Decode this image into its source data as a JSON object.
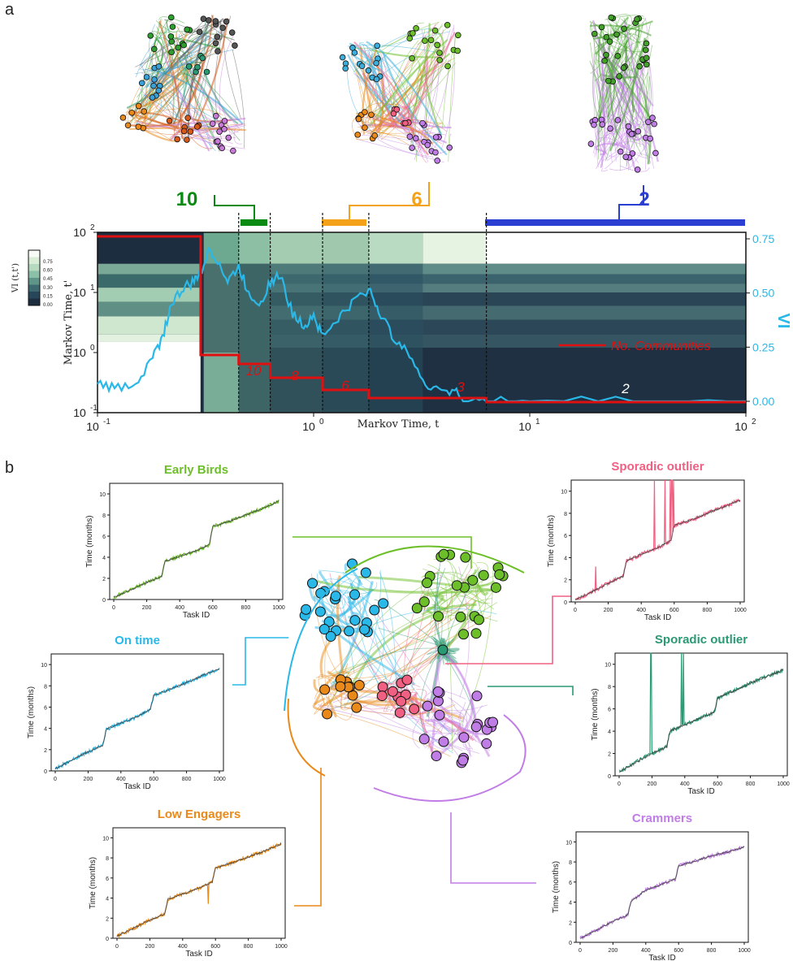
{
  "panel_a": {
    "label": "a",
    "networks": [
      {
        "count": "10",
        "color": "#0a8a12"
      },
      {
        "count": "6",
        "color": "#f5a21b"
      },
      {
        "count": "2",
        "color": "#2a3fd1"
      }
    ],
    "xlabel": "Markov Time, t",
    "ylabel": "Markov Time, t'",
    "right_label": "VI",
    "colorbar_label": "VI (t,t')",
    "colorbar_ticks": [
      "0.75",
      "0.60",
      "0.45",
      "0.30",
      "0.15",
      "0.00"
    ],
    "legend": "No. Communities",
    "x_ticks": [
      "10",
      "10",
      "10",
      "10"
    ],
    "x_exps": [
      "-1",
      "0",
      "1",
      "2"
    ],
    "y_ticks": [
      "10",
      "10",
      "10",
      "10"
    ],
    "y_exps": [
      "2",
      "1",
      "0",
      "-1"
    ],
    "right_ticks": [
      "0.75",
      "0.50",
      "0.25",
      "0.00"
    ],
    "community_labels": [
      "10",
      "8",
      "6",
      "3",
      "2"
    ]
  },
  "panel_b": {
    "label": "b",
    "plots": [
      {
        "title": "Early Birds",
        "color": "#6dbf2a",
        "ylabel": "Time (months)",
        "xlabel": "Task ID"
      },
      {
        "title": "On time",
        "color": "#29b8e8",
        "ylabel": "Time (months)",
        "xlabel": "Task ID"
      },
      {
        "title": "Low Engagers",
        "color": "#e8891a",
        "ylabel": "Time (months)",
        "xlabel": "Task ID"
      },
      {
        "title": "Sporadic outlier",
        "color": "#f06083",
        "ylabel": "Time (months)",
        "xlabel": "Task ID"
      },
      {
        "title": "Sporadic outlier",
        "color": "#2a9a72",
        "ylabel": "Time (months)",
        "xlabel": "Task ID"
      },
      {
        "title": "Crammers",
        "color": "#c17de6",
        "ylabel": "Time (months)",
        "xlabel": "Task ID"
      }
    ],
    "x_ticks": [
      "0",
      "200",
      "400",
      "600",
      "800",
      "1000"
    ],
    "y_ticks": [
      "0",
      "2",
      "4",
      "6",
      "8",
      "10"
    ]
  },
  "chart_data": [
    {
      "type": "line",
      "x_scale": "log",
      "xlim": [
        0.1,
        100
      ],
      "ylim": [
        0.1,
        100
      ],
      "xlabel": "Markov Time, t",
      "ylabel": "Markov Time, t'",
      "series": [
        {
          "name": "No. Communities",
          "color": "#e01010",
          "x": [
            0.1,
            0.3,
            0.3,
            0.45,
            0.45,
            0.63,
            0.63,
            1.1,
            1.1,
            1.8,
            1.8,
            6.3,
            6.3,
            100
          ],
          "values": [
            11,
            11,
            10,
            10,
            9,
            9,
            8,
            8,
            6,
            6,
            3,
            3,
            2,
            2
          ]
        },
        {
          "name": "VI",
          "color": "#29b8e8",
          "x": [
            0.1,
            0.12,
            0.15,
            0.18,
            0.2,
            0.22,
            0.25,
            0.28,
            0.3,
            0.33,
            0.36,
            0.4,
            0.45,
            0.5,
            0.56,
            0.63,
            0.7,
            0.8,
            0.9,
            1.0,
            1.1,
            1.3,
            1.5,
            1.8,
            2.0,
            2.3,
            2.7,
            3.2,
            3.8,
            4.5,
            5.0,
            6.3,
            10,
            30,
            100
          ],
          "values": [
            0.08,
            0.06,
            0.08,
            0.2,
            0.3,
            0.45,
            0.52,
            0.55,
            0.6,
            0.7,
            0.65,
            0.55,
            0.62,
            0.5,
            0.45,
            0.55,
            0.58,
            0.4,
            0.35,
            0.4,
            0.3,
            0.38,
            0.45,
            0.52,
            0.42,
            0.3,
            0.25,
            0.08,
            0.06,
            0.05,
            0.0,
            0.0,
            0.0,
            0.0,
            0.0
          ]
        }
      ]
    },
    {
      "type": "line",
      "xlim": [
        0,
        1000
      ],
      "ylim": [
        0,
        10
      ],
      "xlabel": "Task ID",
      "ylabel": "Time (months)",
      "series": [
        {
          "name": "Early Birds",
          "x": [
            0,
            100,
            200,
            290,
            310,
            400,
            500,
            580,
            600,
            700,
            800,
            900,
            1000
          ],
          "values": [
            0.2,
            0.9,
            1.6,
            2.2,
            3.6,
            4.1,
            4.6,
            5.2,
            6.9,
            7.4,
            8.0,
            8.6,
            9.3
          ]
        },
        {
          "name": "On time",
          "x": [
            0,
            100,
            200,
            290,
            310,
            400,
            500,
            580,
            600,
            700,
            800,
            900,
            1000
          ],
          "values": [
            0.2,
            1.0,
            1.8,
            2.4,
            3.9,
            4.5,
            5.1,
            5.8,
            7.1,
            7.7,
            8.3,
            9.0,
            9.6
          ]
        },
        {
          "name": "Low Engagers",
          "x": [
            0,
            100,
            200,
            290,
            310,
            400,
            500,
            580,
            600,
            700,
            800,
            900,
            1000
          ],
          "values": [
            0.2,
            1.0,
            1.8,
            2.4,
            3.9,
            4.4,
            5.0,
            5.6,
            7.0,
            7.5,
            8.1,
            8.7,
            9.4
          ]
        },
        {
          "name": "Sporadic outlier",
          "x": [
            0,
            100,
            200,
            290,
            310,
            400,
            500,
            580,
            600,
            700,
            800,
            900,
            1000
          ],
          "values": [
            0.2,
            0.9,
            1.7,
            2.3,
            3.7,
            4.3,
            4.9,
            5.5,
            6.9,
            7.4,
            8.0,
            8.6,
            9.2
          ]
        },
        {
          "name": "Sporadic outlier",
          "x": [
            0,
            100,
            200,
            290,
            310,
            400,
            500,
            580,
            600,
            700,
            800,
            900,
            1000
          ],
          "values": [
            0.3,
            1.2,
            2.0,
            2.6,
            4.0,
            4.6,
            5.2,
            5.7,
            7.0,
            7.6,
            8.3,
            8.9,
            9.5
          ]
        },
        {
          "name": "Crammers",
          "x": [
            0,
            100,
            200,
            290,
            310,
            400,
            500,
            580,
            600,
            700,
            800,
            900,
            1000
          ],
          "values": [
            0.4,
            1.2,
            2.1,
            2.7,
            4.1,
            5.2,
            5.8,
            6.3,
            7.6,
            8.1,
            8.6,
            9.0,
            9.5
          ]
        }
      ]
    }
  ]
}
